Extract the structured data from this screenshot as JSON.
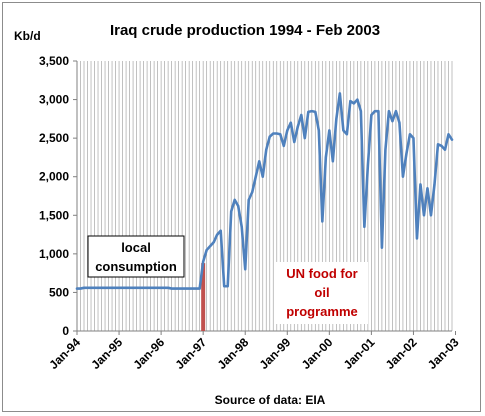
{
  "chart_data": {
    "type": "line",
    "title": "Iraq crude production 1994 - Feb 2003",
    "ylabel": "Kb/d",
    "xlabel": "Source of data: EIA",
    "ylim": [
      0,
      3500
    ],
    "y_ticks": [
      "0",
      "500",
      "1,000",
      "1,500",
      "2,000",
      "2,500",
      "3,000",
      "3,500"
    ],
    "x_tick_labels": [
      "Jan-94",
      "Jan-95",
      "Jan-96",
      "Jan-97",
      "Jan-98",
      "Jan-99",
      "Jan-00",
      "Jan-01",
      "Jan-02",
      "Jan-03"
    ],
    "grid": "vertical monthly lines",
    "series": [
      {
        "color": "#4f81bd",
        "start": "Jan-94",
        "frequency": "monthly",
        "values": [
          550,
          550,
          560,
          560,
          560,
          560,
          560,
          560,
          560,
          560,
          560,
          560,
          560,
          560,
          560,
          560,
          560,
          560,
          560,
          560,
          560,
          560,
          560,
          560,
          560,
          560,
          560,
          550,
          550,
          550,
          550,
          550,
          550,
          550,
          550,
          550,
          900,
          1050,
          1100,
          1150,
          1250,
          1300,
          580,
          580,
          1550,
          1700,
          1620,
          1350,
          800,
          1700,
          1800,
          2000,
          2200,
          2000,
          2350,
          2520,
          2560,
          2560,
          2550,
          2400,
          2600,
          2700,
          2450,
          2650,
          2800,
          2500,
          2840,
          2850,
          2840,
          2600,
          1420,
          2250,
          2600,
          2200,
          2750,
          3080,
          2600,
          2550,
          2980,
          2950,
          3000,
          2850,
          1350,
          2150,
          2800,
          2850,
          2850,
          1080,
          2350,
          2850,
          2720,
          2850,
          2700,
          2000,
          2300,
          2550,
          2500,
          1200,
          1900,
          1500,
          1850,
          1500,
          1900,
          2420,
          2400,
          2350,
          2550,
          2480
        ]
      }
    ],
    "annotations": [
      {
        "text": "local consumption",
        "box": "black border",
        "color": "#000000"
      },
      {
        "text": "UN food for oil programme",
        "box": "white",
        "color": "#c00000"
      }
    ],
    "marker_bar": {
      "x": "Jan-97",
      "value": 880,
      "color": "#c0504d"
    }
  },
  "texts": {
    "title": "Iraq crude production 1994 - Feb 2003",
    "ylabel": "Kb/d",
    "source": "Source of data: EIA",
    "local_line1": "local",
    "local_line2": "consumption",
    "un_line1": "UN food for",
    "un_line2": "oil",
    "un_line3": "programme"
  }
}
